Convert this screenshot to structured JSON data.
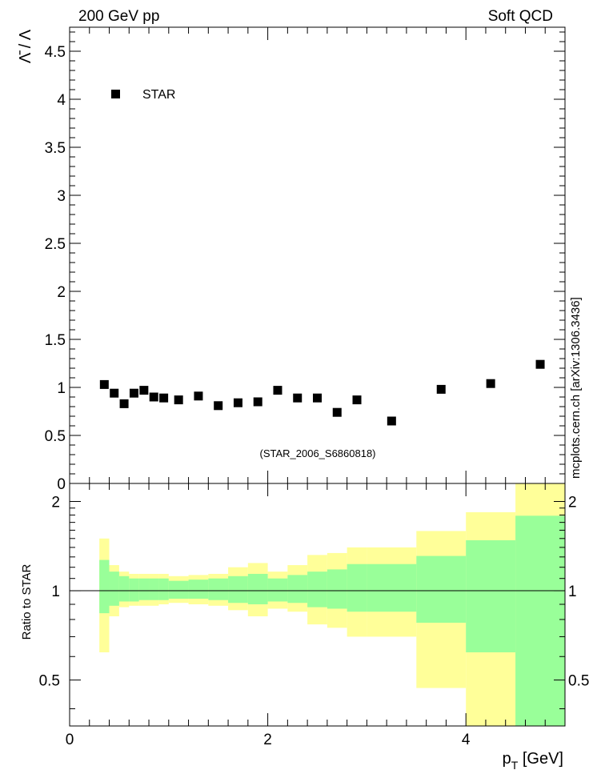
{
  "header": {
    "left": "200 GeV pp",
    "right": "Soft QCD"
  },
  "watermark": "mcplots.cern.ch [arXiv:1306.3436]",
  "analysis_label": "(STAR_2006_S6860818)",
  "colors": {
    "band_outer": "#ffff99",
    "band_inner": "#99ff99",
    "marker": "#000000",
    "analysis_label": "#999999"
  },
  "chart_data": [
    {
      "type": "scatter",
      "ylabel": "Λ̄ / Λ",
      "xlim": [
        0,
        5
      ],
      "ylim": [
        0,
        4.75
      ],
      "yticks": [
        "0",
        "0.5",
        "1",
        "1.5",
        "2",
        "2.5",
        "3",
        "3.5",
        "4",
        "4.5"
      ],
      "legend": {
        "position": "top-left",
        "entries": [
          "STAR"
        ]
      },
      "series": [
        {
          "name": "STAR",
          "x": [
            0.35,
            0.45,
            0.55,
            0.65,
            0.75,
            0.85,
            0.95,
            1.1,
            1.3,
            1.5,
            1.7,
            1.9,
            2.1,
            2.3,
            2.5,
            2.7,
            2.9,
            3.25,
            3.75,
            4.25,
            4.75
          ],
          "y": [
            1.03,
            0.94,
            0.83,
            0.94,
            0.97,
            0.9,
            0.89,
            0.87,
            0.91,
            0.81,
            0.84,
            0.85,
            0.97,
            0.89,
            0.89,
            0.74,
            0.87,
            0.65,
            0.98,
            1.04,
            1.24
          ]
        }
      ]
    },
    {
      "type": "area",
      "ylabel": "Ratio to STAR",
      "xlabel": "p_T [GeV]",
      "xlim": [
        0,
        5
      ],
      "ylim": [
        0.35,
        2.3
      ],
      "yticks": [
        "0.5",
        "1",
        "2"
      ],
      "xticks": [
        "0",
        "2",
        "4"
      ],
      "reference_line": 1,
      "bins": [
        {
          "x": [
            0.3,
            0.4
          ],
          "inner": [
            0.84,
            1.27
          ],
          "outer": [
            0.62,
            1.5
          ]
        },
        {
          "x": [
            0.4,
            0.5
          ],
          "inner": [
            0.89,
            1.16
          ],
          "outer": [
            0.82,
            1.22
          ]
        },
        {
          "x": [
            0.5,
            0.6
          ],
          "inner": [
            0.92,
            1.12
          ],
          "outer": [
            0.88,
            1.16
          ]
        },
        {
          "x": [
            0.6,
            0.7
          ],
          "inner": [
            0.92,
            1.1
          ],
          "outer": [
            0.89,
            1.14
          ]
        },
        {
          "x": [
            0.7,
            0.8
          ],
          "inner": [
            0.93,
            1.1
          ],
          "outer": [
            0.89,
            1.14
          ]
        },
        {
          "x": [
            0.8,
            0.9
          ],
          "inner": [
            0.93,
            1.1
          ],
          "outer": [
            0.89,
            1.14
          ]
        },
        {
          "x": [
            0.9,
            1.0
          ],
          "inner": [
            0.93,
            1.1
          ],
          "outer": [
            0.9,
            1.14
          ]
        },
        {
          "x": [
            1.0,
            1.2
          ],
          "inner": [
            0.94,
            1.08
          ],
          "outer": [
            0.91,
            1.12
          ]
        },
        {
          "x": [
            1.2,
            1.4
          ],
          "inner": [
            0.94,
            1.09
          ],
          "outer": [
            0.9,
            1.13
          ]
        },
        {
          "x": [
            1.4,
            1.6
          ],
          "inner": [
            0.93,
            1.1
          ],
          "outer": [
            0.89,
            1.14
          ]
        },
        {
          "x": [
            1.6,
            1.8
          ],
          "inner": [
            0.91,
            1.12
          ],
          "outer": [
            0.86,
            1.2
          ]
        },
        {
          "x": [
            1.8,
            2.0
          ],
          "inner": [
            0.9,
            1.14
          ],
          "outer": [
            0.82,
            1.24
          ]
        },
        {
          "x": [
            2.0,
            2.2
          ],
          "inner": [
            0.92,
            1.1
          ],
          "outer": [
            0.87,
            1.16
          ]
        },
        {
          "x": [
            2.2,
            2.4
          ],
          "inner": [
            0.91,
            1.13
          ],
          "outer": [
            0.85,
            1.22
          ]
        },
        {
          "x": [
            2.4,
            2.6
          ],
          "inner": [
            0.88,
            1.16
          ],
          "outer": [
            0.77,
            1.32
          ]
        },
        {
          "x": [
            2.6,
            2.8
          ],
          "inner": [
            0.87,
            1.18
          ],
          "outer": [
            0.75,
            1.34
          ]
        },
        {
          "x": [
            2.8,
            3.0
          ],
          "inner": [
            0.85,
            1.23
          ],
          "outer": [
            0.7,
            1.4
          ]
        },
        {
          "x": [
            3.0,
            3.5
          ],
          "inner": [
            0.85,
            1.23
          ],
          "outer": [
            0.7,
            1.4
          ]
        },
        {
          "x": [
            3.5,
            4.0
          ],
          "inner": [
            0.78,
            1.31
          ],
          "outer": [
            0.47,
            1.59
          ]
        },
        {
          "x": [
            4.0,
            4.5
          ],
          "inner": [
            0.62,
            1.48
          ],
          "outer": [
            0.35,
            1.84
          ]
        },
        {
          "x": [
            4.5,
            5.0
          ],
          "inner": [
            0.35,
            1.79
          ],
          "outer": [
            0.35,
            2.3
          ]
        }
      ]
    }
  ]
}
